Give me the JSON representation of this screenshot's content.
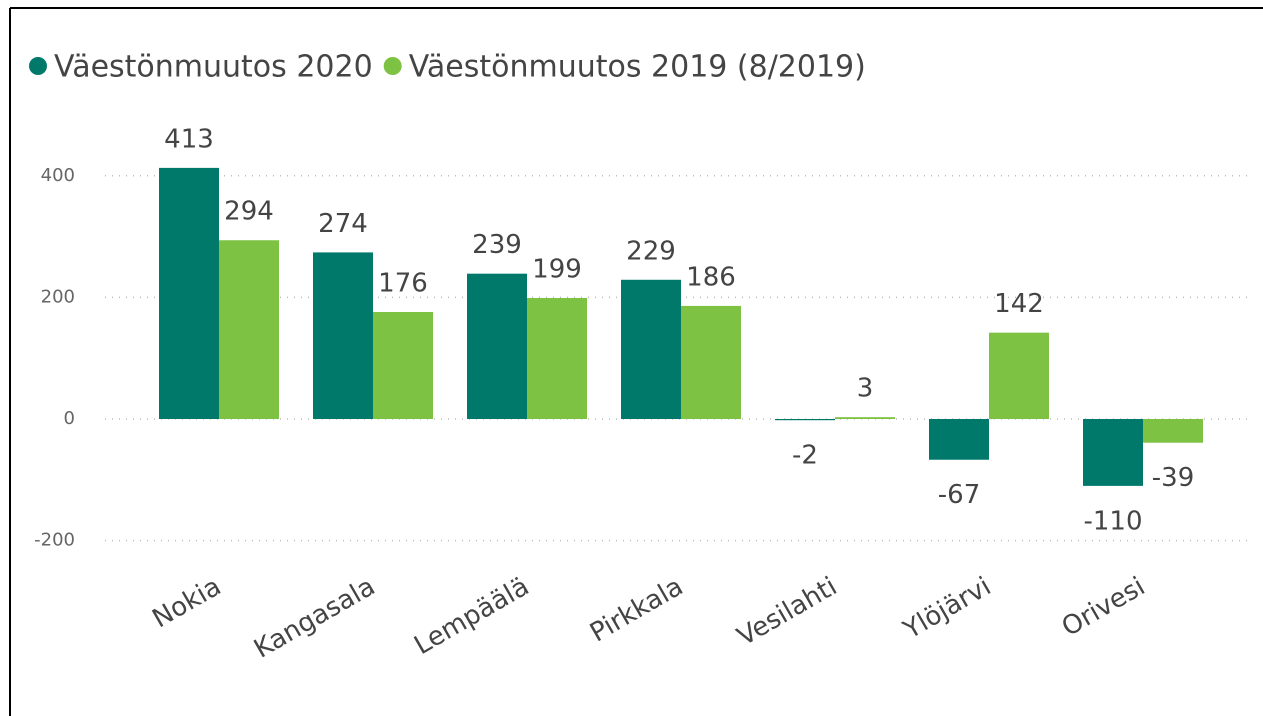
{
  "chart_data": {
    "type": "bar",
    "categories": [
      "Nokia",
      "Kangasala",
      "Lempäälä",
      "Pirkkala",
      "Vesilahti",
      "Ylöjärvi",
      "Orivesi"
    ],
    "series": [
      {
        "name": "Väestönmuutos 2020",
        "color": "#00796b",
        "values": [
          413,
          274,
          239,
          229,
          -2,
          -67,
          -110
        ]
      },
      {
        "name": "Väestönmuutos 2019 (8/2019)",
        "color": "#7dc242",
        "values": [
          294,
          176,
          199,
          186,
          3,
          142,
          -39
        ]
      }
    ],
    "ylim": [
      -250,
      500
    ],
    "yticks": [
      -200,
      0,
      200,
      400
    ],
    "grid": true,
    "legend": "top-left"
  }
}
